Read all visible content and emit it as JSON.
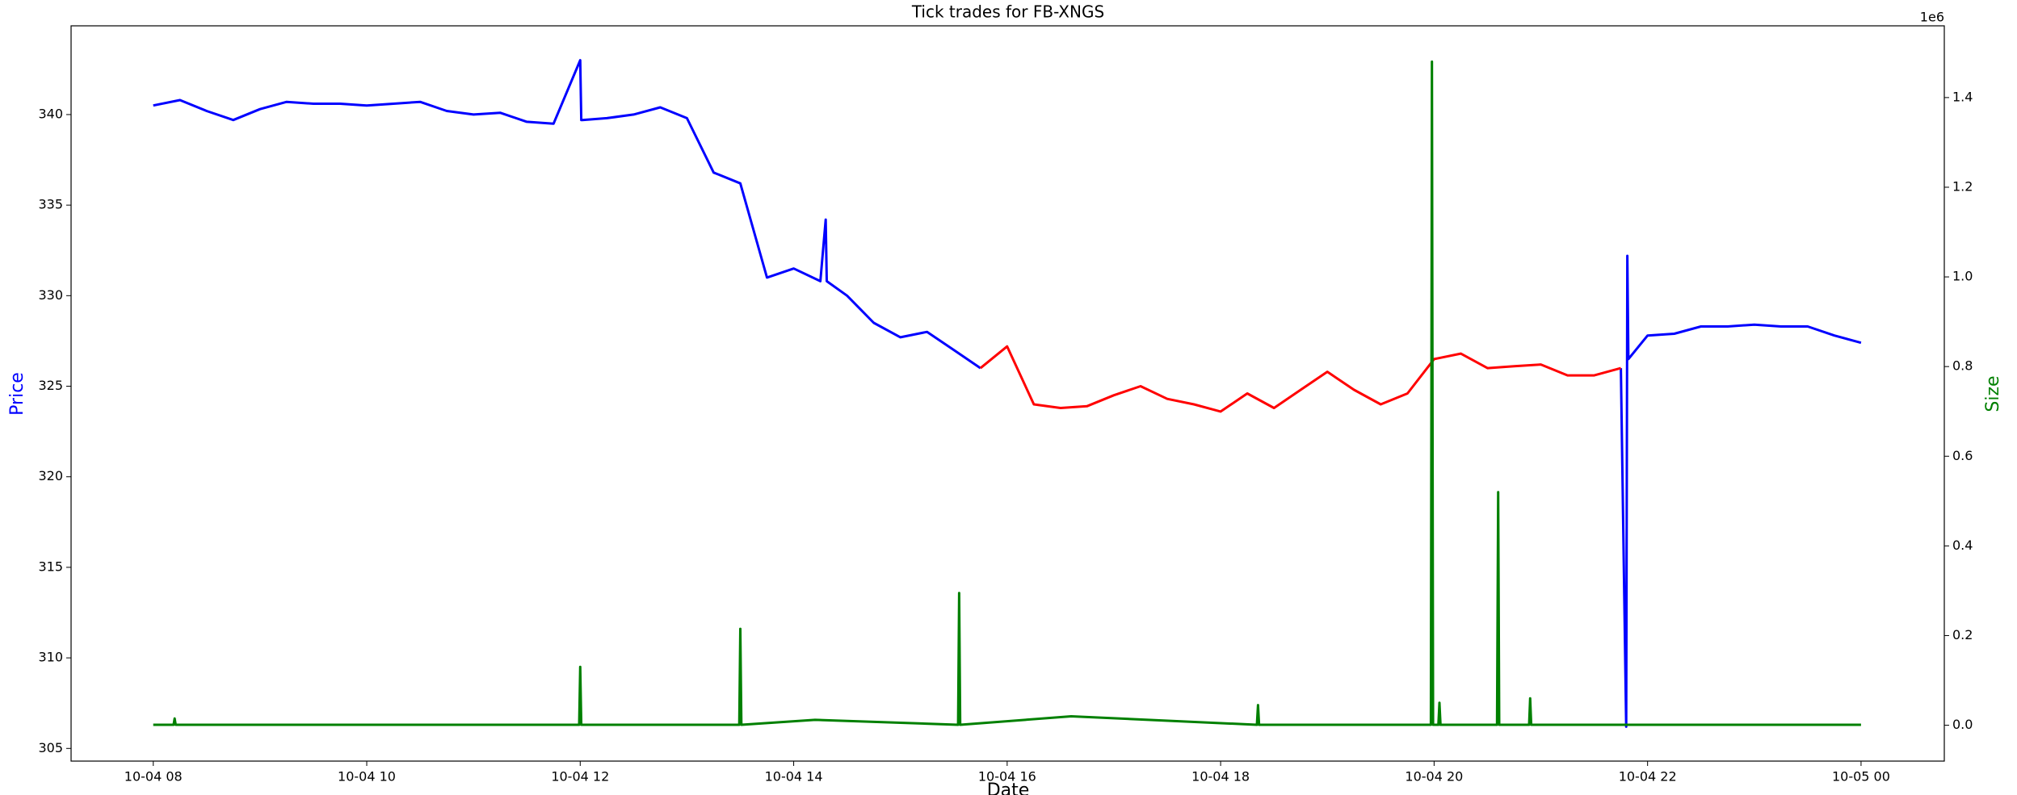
{
  "chart_data": {
    "type": "line",
    "title": "Tick trades for FB-XNGS",
    "xlabel": "Date",
    "ylabel": "Price",
    "y2label": "Size",
    "y2_offset_label": "1e6",
    "ylabel_color": "#0000ff",
    "y2label_color": "#008000",
    "xlim": [
      7.23,
      24.78
    ],
    "xticks": [
      {
        "value": 8,
        "label": "10-04 08"
      },
      {
        "value": 10,
        "label": "10-04 10"
      },
      {
        "value": 12,
        "label": "10-04 12"
      },
      {
        "value": 14,
        "label": "10-04 14"
      },
      {
        "value": 16,
        "label": "10-04 16"
      },
      {
        "value": 18,
        "label": "10-04 18"
      },
      {
        "value": 20,
        "label": "10-04 20"
      },
      {
        "value": 22,
        "label": "10-04 22"
      },
      {
        "value": 24,
        "label": "10-05 00"
      }
    ],
    "ylim": [
      304.3,
      344.9
    ],
    "yticks": [
      305,
      310,
      315,
      320,
      325,
      330,
      335,
      340
    ],
    "y2lim": [
      -80000,
      1560000
    ],
    "y2ticks": [
      {
        "value": 0,
        "label": "0.0"
      },
      {
        "value": 200000,
        "label": "0.2"
      },
      {
        "value": 400000,
        "label": "0.4"
      },
      {
        "value": 600000,
        "label": "0.6"
      },
      {
        "value": 800000,
        "label": "0.8"
      },
      {
        "value": 1000000,
        "label": "1.0"
      },
      {
        "value": 1200000,
        "label": "1.2"
      },
      {
        "value": 1400000,
        "label": "1.4"
      }
    ],
    "series": [
      {
        "color": "#0000ff",
        "x": [
          8.0,
          8.25,
          8.5,
          8.75,
          9.0,
          9.25,
          9.5,
          9.75,
          10.0,
          10.25,
          10.5,
          10.75,
          11.0,
          11.25,
          11.5,
          11.75,
          12.0,
          12.01,
          12.02,
          12.25,
          12.5,
          12.75,
          13.0,
          13.25,
          13.5,
          13.75,
          14.0,
          14.25,
          14.3,
          14.31,
          14.5,
          14.75,
          15.0,
          15.25,
          15.5,
          15.75,
          16.0,
          16.25,
          16.5,
          16.75,
          17.0,
          17.25,
          17.5,
          17.75,
          18.0,
          18.25,
          18.5,
          18.75,
          19.0,
          19.25,
          19.5,
          19.75,
          20.0,
          20.25,
          20.5,
          20.75,
          21.0,
          21.25,
          21.5,
          21.75,
          21.8,
          21.81,
          21.82,
          22.0,
          22.25,
          22.5,
          22.75,
          23.0,
          23.25,
          23.5,
          23.75,
          24.0
        ],
        "values": [
          340.5,
          340.8,
          340.2,
          339.7,
          340.3,
          340.7,
          340.6,
          340.6,
          340.5,
          340.6,
          340.7,
          340.2,
          340.0,
          340.1,
          339.6,
          339.5,
          343.0,
          339.7,
          339.7,
          339.8,
          340.0,
          340.4,
          339.8,
          336.8,
          336.2,
          331.0,
          331.5,
          330.8,
          334.2,
          330.8,
          330.0,
          328.5,
          327.7,
          328.0,
          327.0,
          326.0,
          null,
          null,
          null,
          null,
          null,
          null,
          null,
          null,
          null,
          null,
          null,
          null,
          null,
          null,
          null,
          null,
          null,
          null,
          null,
          null,
          null,
          null,
          null,
          326.0,
          306.2,
          332.2,
          326.5,
          327.8,
          327.9,
          328.3,
          328.3,
          328.4,
          328.3,
          328.3,
          327.8,
          327.4
        ]
      },
      {
        "color": "#ff0000",
        "x": [
          8.0,
          8.25,
          8.5,
          8.75,
          9.0,
          9.25,
          9.5,
          9.75,
          10.0,
          10.25,
          10.5,
          10.75,
          11.0,
          11.25,
          11.5,
          11.75,
          12.0,
          12.01,
          12.02,
          12.25,
          12.5,
          12.75,
          13.0,
          13.25,
          13.5,
          13.75,
          14.0,
          14.25,
          14.3,
          14.31,
          14.5,
          14.75,
          15.0,
          15.25,
          15.5,
          15.75,
          16.0,
          16.25,
          16.5,
          16.75,
          17.0,
          17.25,
          17.5,
          17.75,
          18.0,
          18.25,
          18.5,
          18.75,
          19.0,
          19.25,
          19.5,
          19.75,
          20.0,
          20.25,
          20.5,
          20.75,
          21.0,
          21.25,
          21.5,
          21.75,
          21.8,
          21.81,
          21.82,
          22.0,
          22.25,
          22.5,
          22.75,
          23.0,
          23.25,
          23.5,
          23.75,
          24.0
        ],
        "values": [
          null,
          null,
          null,
          null,
          null,
          null,
          null,
          null,
          null,
          null,
          null,
          null,
          null,
          null,
          null,
          null,
          null,
          null,
          null,
          null,
          null,
          null,
          null,
          null,
          null,
          null,
          null,
          null,
          null,
          null,
          null,
          null,
          null,
          null,
          null,
          326.0,
          327.2,
          324.0,
          323.8,
          323.9,
          324.5,
          325.0,
          324.3,
          324.0,
          323.6,
          324.6,
          323.8,
          324.8,
          325.8,
          324.8,
          324.0,
          324.6,
          326.5,
          326.8,
          326.0,
          326.1,
          326.2,
          325.6,
          325.6,
          326.0,
          null,
          null,
          null,
          null,
          null,
          null,
          null,
          null,
          null,
          null,
          null,
          null
        ]
      },
      {
        "color": "#008000",
        "axis": "y2",
        "x": [
          8.0,
          8.19,
          8.2,
          8.21,
          11.99,
          12.0,
          12.01,
          13.49,
          13.5,
          13.51,
          14.2,
          15.54,
          15.55,
          15.56,
          16.6,
          18.34,
          18.35,
          18.36,
          19.97,
          19.98,
          19.99,
          20.04,
          20.05,
          20.06,
          20.59,
          20.6,
          20.61,
          20.89,
          20.9,
          20.91,
          24.0
        ],
        "values": [
          1000,
          1000,
          15000,
          1000,
          1000,
          130000,
          1000,
          1000,
          215000,
          1000,
          12000,
          1000,
          295000,
          1000,
          20000,
          1000,
          45000,
          1000,
          1000,
          1480000,
          1000,
          1000,
          50000,
          1000,
          1000,
          520000,
          1000,
          1000,
          60000,
          1000,
          1000
        ]
      }
    ]
  }
}
